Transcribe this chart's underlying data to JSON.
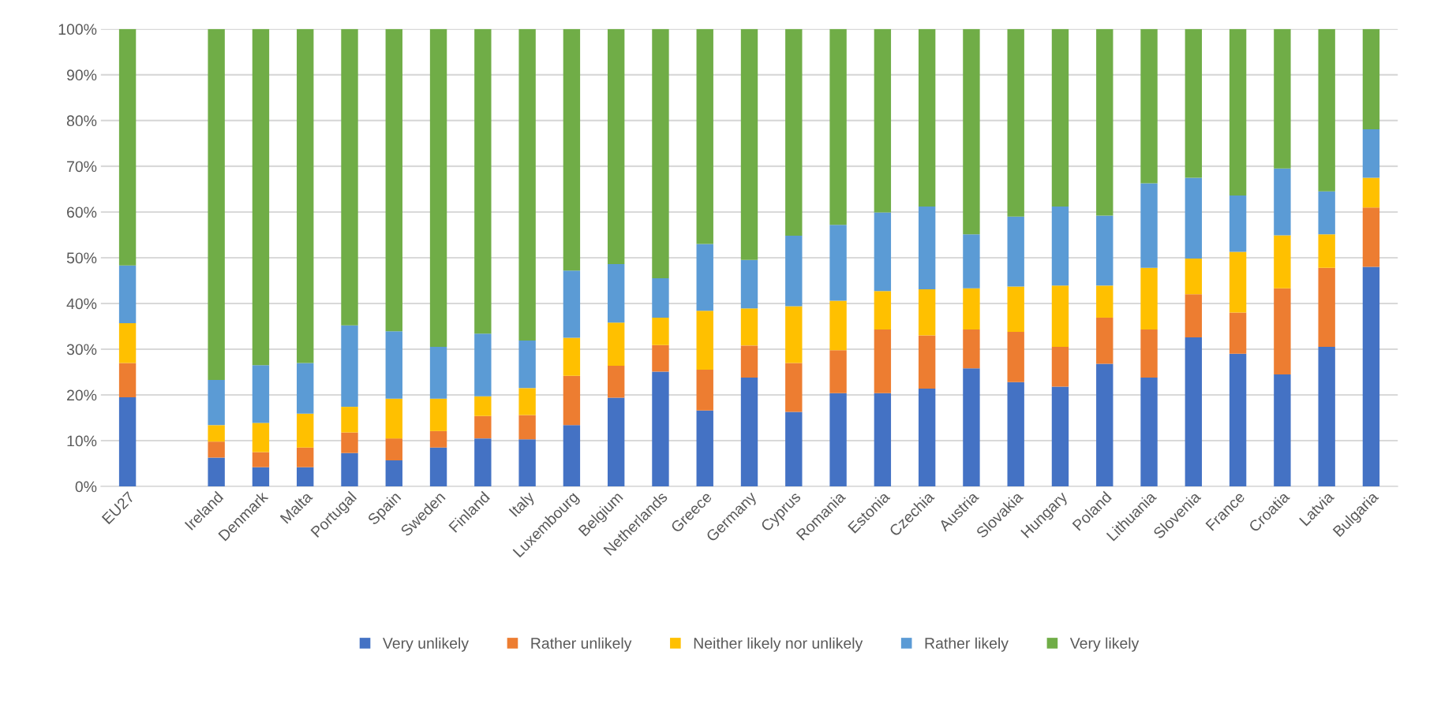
{
  "chart_data": {
    "type": "bar",
    "stacked": true,
    "categories": [
      "EU27",
      null,
      "Ireland",
      "Denmark",
      "Malta",
      "Portugal",
      "Spain",
      "Sweden",
      "Finland",
      "Italy",
      "Luxembourg",
      "Belgium",
      "Netherlands",
      "Greece",
      "Germany",
      "Cyprus",
      "Romania",
      "Estonia",
      "Czechia",
      "Austria",
      "Slovakia",
      "Hungary",
      "Poland",
      "Lithuania",
      "Slovenia",
      "France",
      "Croatia",
      "Latvia",
      "Bulgaria"
    ],
    "series": [
      {
        "name": "Very unlikely",
        "color": "#4472c4",
        "values": [
          19.5,
          null,
          6.3,
          4.2,
          4.2,
          7.3,
          5.7,
          8.5,
          10.5,
          10.3,
          13.4,
          19.4,
          25.1,
          16.6,
          23.8,
          16.3,
          20.4,
          20.4,
          21.4,
          25.8,
          22.8,
          21.8,
          26.8,
          23.8,
          32.6,
          29.0,
          24.5,
          30.5,
          48.0
        ]
      },
      {
        "name": "Rather unlikely",
        "color": "#ed7d31",
        "values": [
          7.5,
          null,
          3.5,
          3.3,
          4.3,
          4.5,
          4.8,
          3.6,
          4.9,
          5.3,
          10.8,
          7.0,
          5.8,
          8.9,
          7.0,
          10.7,
          9.4,
          13.9,
          11.6,
          8.5,
          11.0,
          8.7,
          10.1,
          10.5,
          9.4,
          9.0,
          18.8,
          17.3,
          13.0
        ]
      },
      {
        "name": "Neither likely nor unlikely",
        "color": "#ffc000",
        "values": [
          8.7,
          null,
          3.6,
          6.4,
          7.4,
          5.6,
          8.7,
          7.1,
          4.3,
          5.9,
          8.3,
          9.4,
          6.0,
          12.9,
          8.1,
          12.4,
          10.8,
          8.4,
          10.1,
          9.0,
          9.9,
          13.4,
          7.0,
          13.5,
          7.8,
          13.3,
          11.6,
          7.3,
          6.5
        ]
      },
      {
        "name": "Rather likely",
        "color": "#5b9bd5",
        "values": [
          12.6,
          null,
          9.9,
          12.6,
          11.1,
          17.8,
          14.7,
          11.3,
          13.7,
          10.4,
          14.7,
          12.8,
          8.6,
          14.6,
          10.6,
          15.4,
          16.6,
          17.2,
          18.1,
          11.8,
          15.3,
          17.3,
          15.3,
          18.5,
          17.7,
          12.3,
          14.6,
          9.4,
          10.6
        ]
      },
      {
        "name": "Very likely",
        "color": "#70ad47",
        "values": [
          51.7,
          null,
          76.7,
          73.5,
          73.0,
          64.8,
          66.1,
          69.5,
          66.6,
          68.1,
          52.8,
          51.4,
          54.5,
          47.0,
          50.5,
          45.2,
          42.8,
          40.1,
          38.8,
          44.9,
          41.0,
          38.8,
          40.8,
          33.7,
          32.5,
          36.4,
          30.5,
          35.5,
          21.9
        ]
      }
    ],
    "ylim": [
      0,
      100
    ],
    "yticks": [
      {
        "value": 0,
        "label": "0%"
      },
      {
        "value": 10,
        "label": "10%"
      },
      {
        "value": 20,
        "label": "20%"
      },
      {
        "value": 30,
        "label": "30%"
      },
      {
        "value": 40,
        "label": "40%"
      },
      {
        "value": 50,
        "label": "50%"
      },
      {
        "value": 60,
        "label": "60%"
      },
      {
        "value": 70,
        "label": "70%"
      },
      {
        "value": 80,
        "label": "80%"
      },
      {
        "value": 90,
        "label": "90%"
      },
      {
        "value": 100,
        "label": "100%"
      }
    ],
    "grid": "y",
    "legend": "bottom"
  }
}
